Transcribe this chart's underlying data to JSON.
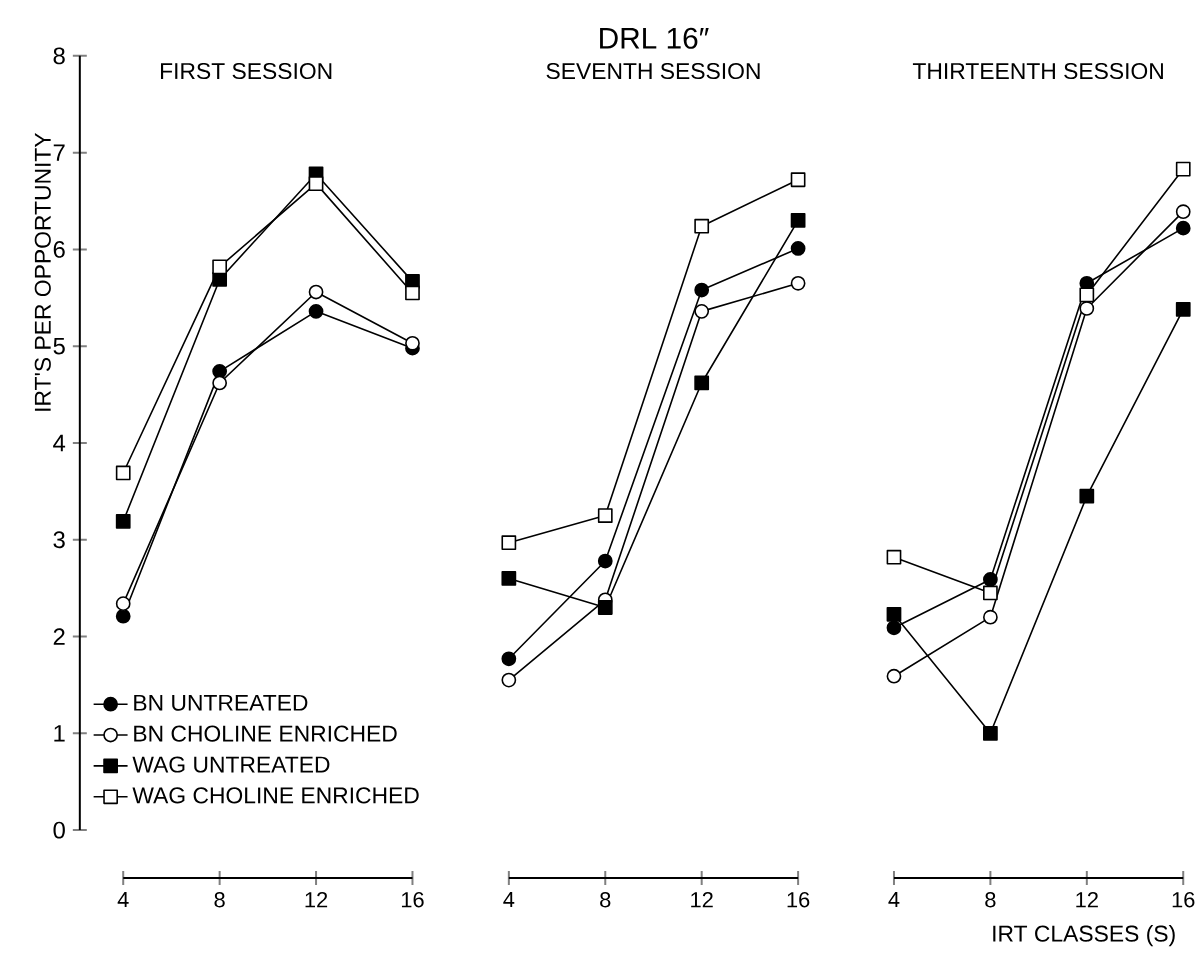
{
  "chart_data": [
    {
      "type": "line",
      "title": "FIRST SESSION",
      "ylabel": "IRT'S PER OPPORTUNITY",
      "x": [
        4,
        8,
        12,
        16
      ],
      "xlim": [
        2.2,
        16
      ],
      "ylim": [
        0,
        8
      ],
      "xticks": [
        4,
        8,
        12,
        16
      ],
      "yticks": [
        0,
        1,
        2,
        3,
        4,
        5,
        6,
        7,
        8
      ],
      "legend": "bottom left",
      "grid": false,
      "series": [
        {
          "name": "BN UNTREATED",
          "marker": "circle",
          "color": "#000000",
          "values": [
            2.21,
            4.74,
            5.36,
            4.98
          ]
        },
        {
          "name": "BN CHOLINE ENRICHED",
          "marker": "circle",
          "color": "#ffffff",
          "values": [
            2.34,
            4.62,
            5.56,
            5.03
          ]
        },
        {
          "name": "WAG UNTREATED",
          "marker": "square",
          "color": "#000000",
          "values": [
            3.19,
            5.69,
            6.78,
            5.67
          ]
        },
        {
          "name": "WAG CHOLINE ENRICHED",
          "marker": "square",
          "color": "#ffffff",
          "values": [
            3.69,
            5.82,
            6.68,
            5.55
          ]
        }
      ]
    },
    {
      "type": "line",
      "title": "SEVENTH SESSION",
      "annotations": [
        "DRL 16″"
      ],
      "x": [
        4,
        8,
        12,
        16
      ],
      "xlim": [
        4,
        16
      ],
      "ylim": [
        0,
        8
      ],
      "xticks": [
        4,
        8,
        12,
        16
      ],
      "tick_labels": "x",
      "grid": false,
      "legend": false,
      "series": [
        {
          "marker": "circle",
          "color": "#000000",
          "values": [
            1.77,
            2.78,
            5.58,
            6.01
          ]
        },
        {
          "marker": "circle",
          "color": "#ffffff",
          "values": [
            1.55,
            2.38,
            5.36,
            5.65
          ]
        },
        {
          "marker": "square",
          "color": "#000000",
          "values": [
            2.6,
            2.3,
            4.62,
            6.3
          ]
        },
        {
          "marker": "square",
          "color": "#ffffff",
          "values": [
            2.97,
            3.25,
            6.24,
            6.72
          ]
        }
      ]
    },
    {
      "type": "line",
      "title": "THIRTEENTH SESSION",
      "xlabel": "IRT CLASSES (S)",
      "x": [
        4,
        8,
        12,
        16
      ],
      "xlim": [
        4,
        16
      ],
      "ylim": [
        0,
        8
      ],
      "xticks": [
        4,
        8,
        12,
        16
      ],
      "tick_labels": "x",
      "grid": false,
      "legend": false,
      "series": [
        {
          "marker": "circle",
          "color": "#000000",
          "values": [
            2.09,
            2.59,
            5.65,
            6.22
          ]
        },
        {
          "marker": "circle",
          "color": "#ffffff",
          "values": [
            1.59,
            2.2,
            5.39,
            6.39
          ]
        },
        {
          "marker": "square",
          "color": "#000000",
          "values": [
            2.23,
            1.0,
            3.45,
            5.38
          ]
        },
        {
          "marker": "square",
          "color": "#ffffff",
          "values": [
            2.82,
            2.45,
            5.53,
            6.83
          ]
        }
      ]
    }
  ]
}
